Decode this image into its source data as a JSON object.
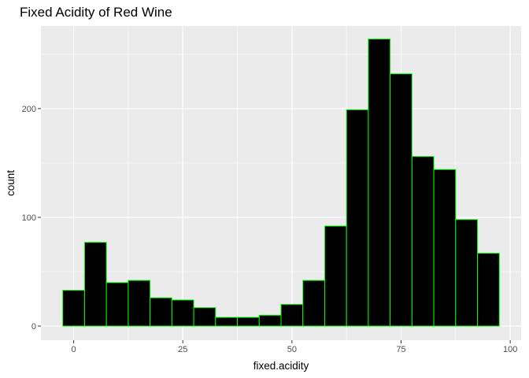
{
  "chart_data": {
    "type": "bar",
    "title": "Fixed Acidity of Red Wine",
    "xlabel": "fixed.acidity",
    "ylabel": "count",
    "xlim": [
      -7.5,
      102.5
    ],
    "ylim": [
      -13,
      276
    ],
    "x_ticks": [
      0,
      25,
      50,
      75,
      100
    ],
    "y_ticks": [
      0,
      100,
      200
    ],
    "bin_width": 5,
    "bins": [
      {
        "x": 0,
        "count": 33
      },
      {
        "x": 5,
        "count": 77
      },
      {
        "x": 10,
        "count": 40
      },
      {
        "x": 15,
        "count": 42
      },
      {
        "x": 20,
        "count": 26
      },
      {
        "x": 25,
        "count": 24
      },
      {
        "x": 30,
        "count": 17
      },
      {
        "x": 35,
        "count": 8
      },
      {
        "x": 40,
        "count": 8
      },
      {
        "x": 45,
        "count": 10
      },
      {
        "x": 50,
        "count": 20
      },
      {
        "x": 55,
        "count": 42
      },
      {
        "x": 60,
        "count": 92
      },
      {
        "x": 65,
        "count": 199
      },
      {
        "x": 70,
        "count": 264
      },
      {
        "x": 75,
        "count": 232
      },
      {
        "x": 80,
        "count": 156
      },
      {
        "x": 85,
        "count": 144
      },
      {
        "x": 90,
        "count": 98
      },
      {
        "x": 95,
        "count": 67
      }
    ],
    "grid": true,
    "panel_background": "#ebebeb",
    "bar_fill": "#000000",
    "bar_outline": "#00ff00"
  }
}
